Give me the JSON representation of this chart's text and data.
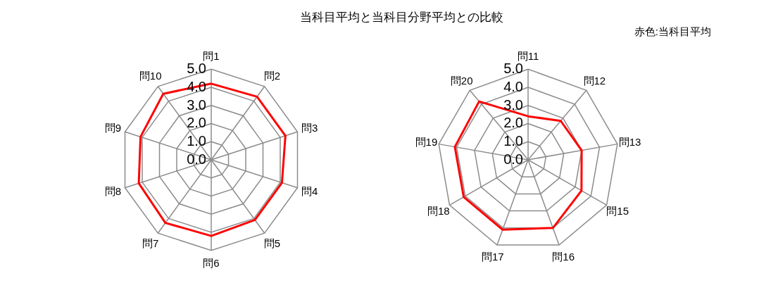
{
  "chart_data": [
    {
      "type": "radar",
      "title": "当科目平均と当科目分野平均との比較",
      "categories": [
        "問1",
        "問2",
        "問3",
        "問4",
        "問5",
        "問6",
        "問7",
        "問8",
        "問9",
        "問10"
      ],
      "series": [
        {
          "color": "#ff0000",
          "values": [
            4.2,
            4.3,
            4.3,
            4.1,
            4.1,
            4.2,
            4.3,
            4.2,
            4.1,
            4.5
          ]
        }
      ],
      "ylim": [
        0,
        5
      ],
      "yticks": [
        {
          "value": 0,
          "label": "0.0"
        },
        {
          "value": 1,
          "label": "1.0"
        },
        {
          "value": 2,
          "label": "2.0"
        },
        {
          "value": 3,
          "label": "3.0"
        },
        {
          "value": 4,
          "label": "4.0"
        },
        {
          "value": 5,
          "label": "5.0"
        }
      ],
      "grid": true
    },
    {
      "type": "radar",
      "annotations": [
        "赤色:当科目平均"
      ],
      "categories": [
        "問11",
        "問12",
        "問13",
        "問15",
        "問16",
        "問17",
        "問18",
        "問19",
        "問20"
      ],
      "series": [
        {
          "color": "#ff0000",
          "values": [
            2.4,
            2.8,
            3.0,
            3.4,
            4.0,
            4.1,
            4.1,
            4.1,
            4.2
          ]
        }
      ],
      "ylim": [
        0,
        5
      ],
      "yticks": [
        {
          "value": 0,
          "label": "0.0"
        },
        {
          "value": 1,
          "label": "1.0"
        },
        {
          "value": 2,
          "label": "2.0"
        },
        {
          "value": 3,
          "label": "3.0"
        },
        {
          "value": 4,
          "label": "4.0"
        },
        {
          "value": 5,
          "label": "5.0"
        }
      ],
      "grid": true
    }
  ]
}
